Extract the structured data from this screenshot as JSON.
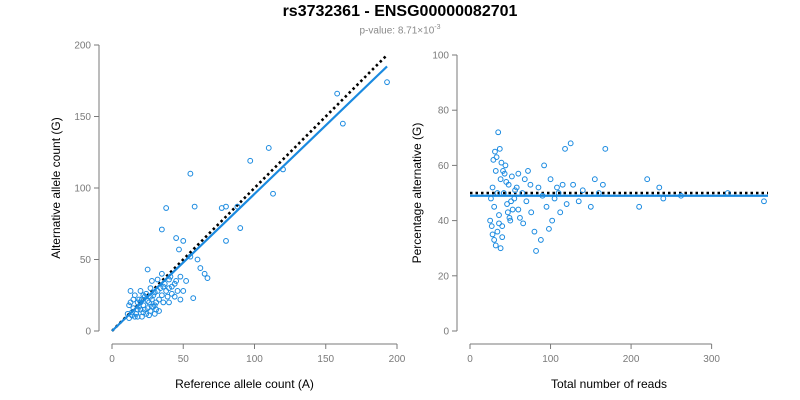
{
  "page": {
    "title": "rs3732361 - ENSG00000082701",
    "subtitle_base": "p-value: 8.71×10",
    "subtitle_exp": "-3"
  },
  "colors": {
    "points": "#1a8ae0",
    "fit": "#1a8ae0",
    "expected": "#000000",
    "axis": "#7a7a7a"
  },
  "chart_data": [
    {
      "type": "scatter",
      "xlabel": "Reference allele count (A)",
      "ylabel": "Alternative allele count (G)",
      "xlim": [
        0,
        200
      ],
      "ylim": [
        0,
        200
      ],
      "xticks": [
        0,
        50,
        100,
        150,
        200
      ],
      "yticks": [
        0,
        50,
        100,
        150,
        200
      ],
      "grid": false,
      "points": [
        [
          193,
          174
        ],
        [
          158,
          166
        ],
        [
          162,
          145
        ],
        [
          110,
          128
        ],
        [
          120,
          113
        ],
        [
          97,
          119
        ],
        [
          55,
          110
        ],
        [
          113,
          96
        ],
        [
          88,
          87
        ],
        [
          77,
          86
        ],
        [
          80,
          87
        ],
        [
          90,
          72
        ],
        [
          80,
          63
        ],
        [
          58,
          87
        ],
        [
          38,
          86
        ],
        [
          35,
          71
        ],
        [
          45,
          65
        ],
        [
          50,
          63
        ],
        [
          47,
          57
        ],
        [
          55,
          52
        ],
        [
          60,
          50
        ],
        [
          62,
          44
        ],
        [
          65,
          40
        ],
        [
          67,
          37
        ],
        [
          48,
          38
        ],
        [
          45,
          35
        ],
        [
          42,
          31
        ],
        [
          50,
          28
        ],
        [
          57,
          23
        ],
        [
          48,
          22
        ],
        [
          40,
          36
        ],
        [
          37,
          33
        ],
        [
          35,
          40
        ],
        [
          32,
          36
        ],
        [
          30,
          27
        ],
        [
          27,
          30
        ],
        [
          25,
          43
        ],
        [
          28,
          35
        ],
        [
          22,
          25
        ],
        [
          20,
          28
        ],
        [
          18,
          15
        ],
        [
          15,
          22
        ],
        [
          13,
          28
        ],
        [
          12,
          18
        ],
        [
          11,
          12
        ],
        [
          12,
          9
        ],
        [
          14,
          13
        ],
        [
          16,
          10
        ],
        [
          18,
          20
        ],
        [
          20,
          15
        ],
        [
          22,
          18
        ],
        [
          24,
          12
        ],
        [
          26,
          20
        ],
        [
          28,
          22
        ],
        [
          30,
          18
        ],
        [
          33,
          22
        ],
        [
          35,
          25
        ],
        [
          38,
          28
        ],
        [
          40,
          30
        ],
        [
          42,
          26
        ],
        [
          44,
          33
        ],
        [
          46,
          28
        ],
        [
          15,
          16
        ],
        [
          17,
          12
        ],
        [
          19,
          22
        ],
        [
          21,
          10
        ],
        [
          23,
          24
        ],
        [
          25,
          16
        ],
        [
          27,
          14
        ],
        [
          29,
          25
        ],
        [
          31,
          20
        ],
        [
          34,
          30
        ],
        [
          36,
          20
        ],
        [
          13,
          20
        ],
        [
          16,
          25
        ],
        [
          18,
          10
        ],
        [
          20,
          20
        ],
        [
          22,
          13
        ],
        [
          24,
          26
        ],
        [
          26,
          11
        ],
        [
          28,
          17
        ],
        [
          30,
          12
        ],
        [
          32,
          28
        ],
        [
          33,
          14
        ],
        [
          14,
          11
        ],
        [
          19,
          17
        ],
        [
          21,
          22
        ],
        [
          23,
          15
        ],
        [
          25,
          21
        ],
        [
          27,
          24
        ],
        [
          29,
          17
        ],
        [
          31,
          15
        ],
        [
          36,
          31
        ],
        [
          39,
          24
        ],
        [
          41,
          38
        ],
        [
          44,
          24
        ],
        [
          52,
          35
        ],
        [
          40,
          20
        ]
      ],
      "fit_line": [
        [
          0,
          0
        ],
        [
          193,
          185
        ]
      ],
      "expected_line": [
        [
          0,
          0
        ],
        [
          193,
          193
        ]
      ]
    },
    {
      "type": "scatter",
      "xlabel": "Total number of reads",
      "ylabel": "Percentage alternative (G)",
      "xlim": [
        0,
        370
      ],
      "ylim": [
        0,
        100
      ],
      "xticks": [
        0,
        100,
        200,
        300
      ],
      "yticks": [
        0,
        20,
        40,
        60,
        80,
        100
      ],
      "grid": false,
      "points": [
        [
          26,
          48
        ],
        [
          28,
          52
        ],
        [
          30,
          45
        ],
        [
          32,
          58
        ],
        [
          34,
          50
        ],
        [
          36,
          42
        ],
        [
          38,
          55
        ],
        [
          40,
          38
        ],
        [
          42,
          50
        ],
        [
          44,
          60
        ],
        [
          46,
          46
        ],
        [
          48,
          53
        ],
        [
          50,
          40
        ],
        [
          52,
          56
        ],
        [
          55,
          48
        ],
        [
          58,
          52
        ],
        [
          60,
          44
        ],
        [
          65,
          50
        ],
        [
          70,
          47
        ],
        [
          75,
          53
        ],
        [
          80,
          36
        ],
        [
          85,
          52
        ],
        [
          90,
          49
        ],
        [
          95,
          45
        ],
        [
          100,
          55
        ],
        [
          105,
          48
        ],
        [
          110,
          50
        ],
        [
          115,
          53
        ],
        [
          120,
          46
        ],
        [
          125,
          68
        ],
        [
          135,
          47
        ],
        [
          150,
          45
        ],
        [
          160,
          50
        ],
        [
          165,
          53
        ],
        [
          210,
          45
        ],
        [
          240,
          48
        ],
        [
          262,
          49
        ],
        [
          320,
          50
        ],
        [
          365,
          47
        ],
        [
          28,
          35
        ],
        [
          30,
          33
        ],
        [
          32,
          31
        ],
        [
          34,
          36
        ],
        [
          36,
          39
        ],
        [
          38,
          30
        ],
        [
          40,
          34
        ],
        [
          25,
          40
        ],
        [
          27,
          38
        ],
        [
          29,
          62
        ],
        [
          31,
          65
        ],
        [
          33,
          63
        ],
        [
          35,
          72
        ],
        [
          37,
          66
        ],
        [
          39,
          61
        ],
        [
          41,
          58
        ],
        [
          43,
          57
        ],
        [
          45,
          54
        ],
        [
          47,
          43
        ],
        [
          49,
          41
        ],
        [
          51,
          47
        ],
        [
          53,
          44
        ],
        [
          56,
          51
        ],
        [
          60,
          57
        ],
        [
          62,
          41
        ],
        [
          66,
          39
        ],
        [
          68,
          55
        ],
        [
          72,
          58
        ],
        [
          76,
          43
        ],
        [
          82,
          29
        ],
        [
          88,
          33
        ],
        [
          92,
          60
        ],
        [
          98,
          37
        ],
        [
          102,
          40
        ],
        [
          108,
          52
        ],
        [
          112,
          43
        ],
        [
          118,
          66
        ],
        [
          128,
          53
        ],
        [
          140,
          51
        ],
        [
          155,
          55
        ],
        [
          168,
          66
        ],
        [
          220,
          55
        ],
        [
          235,
          52
        ]
      ],
      "fit_line": [
        [
          0,
          49
        ],
        [
          370,
          49
        ]
      ],
      "expected_line": [
        [
          0,
          50
        ],
        [
          370,
          50
        ]
      ]
    }
  ]
}
